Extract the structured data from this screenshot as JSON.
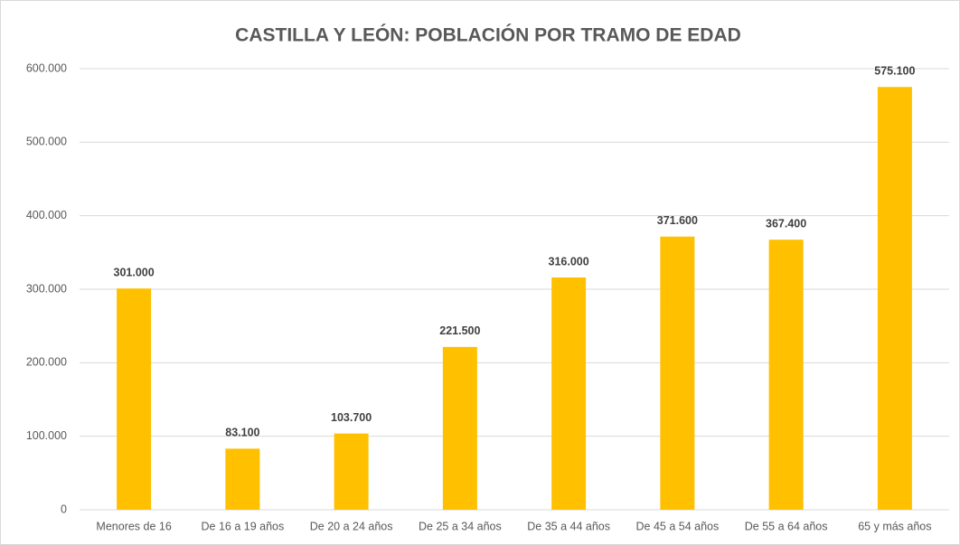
{
  "chart_data": {
    "type": "bar",
    "title": "CASTILLA Y LEÓN: POBLACIÓN POR TRAMO DE EDAD",
    "categories": [
      "Menores de 16",
      "De 16 a 19 años",
      "De 20 a 24 años",
      "De 25 a 34 años",
      "De 35 a 44 años",
      "De 45 a 54 años",
      "De 55 a 64 años",
      "65 y más años"
    ],
    "values": [
      301000,
      83100,
      103700,
      221500,
      316000,
      371600,
      367400,
      575100
    ],
    "value_labels": [
      "301.000",
      "83.100",
      "103.700",
      "221.500",
      "316.000",
      "371.600",
      "367.400",
      "575.100"
    ],
    "color": "#ffc000",
    "ylim": [
      0,
      600000
    ],
    "yticks": [
      0,
      {
        "value": 100000,
        "label": "100.000"
      },
      {
        "value": 200000,
        "label": "200.000"
      },
      {
        "value": 300000,
        "label": "300.000"
      },
      {
        "value": 400000,
        "label": "400.000"
      },
      {
        "value": 500000,
        "label": "500.000"
      },
      {
        "value": 600000,
        "label": "600.000"
      }
    ],
    "grid": true
  }
}
